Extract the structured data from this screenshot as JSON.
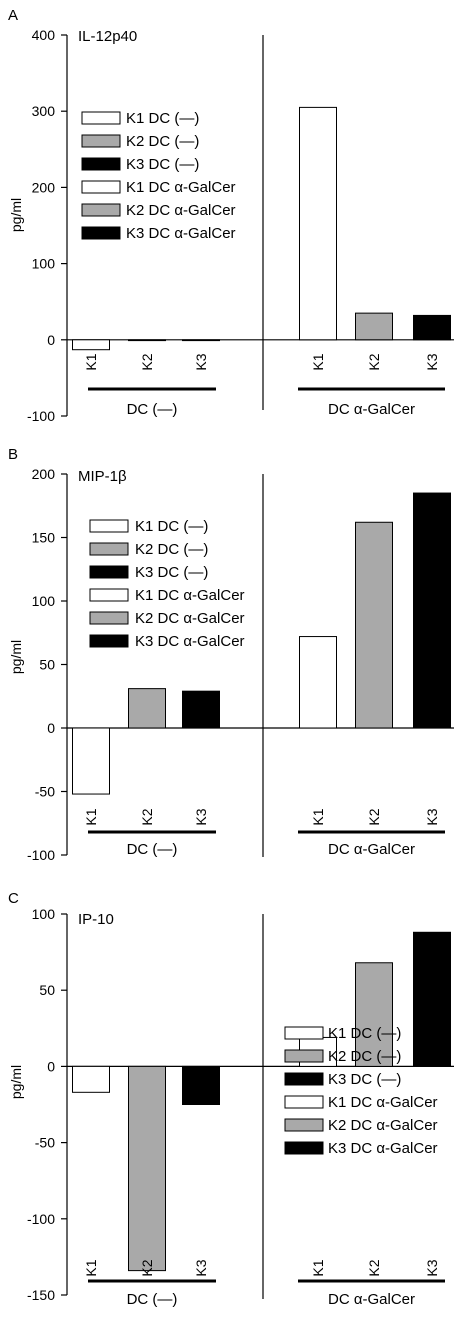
{
  "chart_data": [
    {
      "type": "bar",
      "panel": "A",
      "title": "IL-12p40",
      "ylabel": "pg/ml",
      "ylim": [
        -100,
        400
      ],
      "yticks": [
        -100,
        0,
        100,
        200,
        300,
        400
      ],
      "groups": [
        "DC (—)",
        "DC α-GalCer"
      ],
      "categories": [
        "K1",
        "K2",
        "K3"
      ],
      "series": [
        {
          "name": "DC (—)",
          "values": [
            -13,
            0,
            0
          ]
        },
        {
          "name": "DC α-GalCer",
          "values": [
            305,
            35,
            32
          ]
        }
      ],
      "legend": {
        "position": "left-middle",
        "entries": [
          "K1 DC (—)",
          "K2 DC (—)",
          "K3 DC (—)",
          "K1 DC α-GalCer",
          "K2 DC α-GalCer",
          "K3 DC α-GalCer"
        ]
      }
    },
    {
      "type": "bar",
      "panel": "B",
      "title": "MIP-1β",
      "ylabel": "pg/ml",
      "ylim": [
        -100,
        200
      ],
      "yticks": [
        -100,
        -50,
        0,
        50,
        100,
        150,
        200
      ],
      "groups": [
        "DC (—)",
        "DC α-GalCer"
      ],
      "categories": [
        "K1",
        "K2",
        "K3"
      ],
      "series": [
        {
          "name": "DC (—)",
          "values": [
            -52,
            31,
            29
          ]
        },
        {
          "name": "DC α-GalCer",
          "values": [
            72,
            162,
            185
          ]
        }
      ],
      "legend": {
        "position": "left-middle",
        "entries": [
          "K1 DC (—)",
          "K2 DC (—)",
          "K3 DC (—)",
          "K1 DC α-GalCer",
          "K2 DC α-GalCer",
          "K3 DC α-GalCer"
        ]
      }
    },
    {
      "type": "bar",
      "panel": "C",
      "title": "IP-10",
      "ylabel": "pg/ml",
      "ylim": [
        -150,
        100
      ],
      "yticks": [
        -150,
        -100,
        -50,
        0,
        50,
        100
      ],
      "groups": [
        "DC (—)",
        "DC α-GalCer"
      ],
      "categories": [
        "K1",
        "K2",
        "K3"
      ],
      "series": [
        {
          "name": "DC (—)",
          "values": [
            -17,
            -134,
            -25
          ]
        },
        {
          "name": "DC α-GalCer",
          "values": [
            19,
            68,
            88
          ]
        }
      ],
      "legend": {
        "position": "right-bottom",
        "entries": [
          "K1 DC (—)",
          "K2 DC (—)",
          "K3 DC (—)",
          "K1 DC α-GalCer",
          "K2 DC α-GalCer",
          "K3 DC α-GalCer"
        ]
      }
    }
  ],
  "colors": {
    "K1": "#ffffff",
    "K2": "#a9a9a9",
    "K3": "#000000",
    "axis": "#000000"
  }
}
